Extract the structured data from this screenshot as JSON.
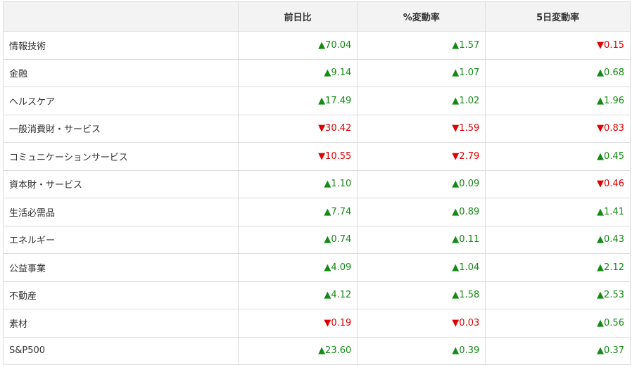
{
  "table": {
    "headers": [
      "",
      "前日比",
      "%変動率",
      "5日変動率"
    ],
    "rows": [
      [
        "情報技術",
        {
          "text": "▲70.04",
          "color": "#138a13"
        },
        {
          "text": "▲1.57",
          "color": "#138a13"
        },
        {
          "text": "▼0.15",
          "color": "#e00000"
        }
      ],
      [
        "金融",
        {
          "text": "▲9.14",
          "color": "#138a13"
        },
        {
          "text": "▲1.07",
          "color": "#138a13"
        },
        {
          "text": "▲0.68",
          "color": "#138a13"
        }
      ],
      [
        "ヘルスケア",
        {
          "text": "▲17.49",
          "color": "#138a13"
        },
        {
          "text": "▲1.02",
          "color": "#138a13"
        },
        {
          "text": "▲1.96",
          "color": "#138a13"
        }
      ],
      [
        "一般消費財・サービス",
        {
          "text": "▼30.42",
          "color": "#e00000"
        },
        {
          "text": "▼1.59",
          "color": "#e00000"
        },
        {
          "text": "▼0.83",
          "color": "#e00000"
        }
      ],
      [
        "コミュニケーションサービス",
        {
          "text": "▼10.55",
          "color": "#e00000"
        },
        {
          "text": "▼2.79",
          "color": "#e00000"
        },
        {
          "text": "▲0.45",
          "color": "#138a13"
        }
      ],
      [
        "資本財・サービス",
        {
          "text": "▲1.10",
          "color": "#138a13"
        },
        {
          "text": "▲0.09",
          "color": "#138a13"
        },
        {
          "text": "▼0.46",
          "color": "#e00000"
        }
      ],
      [
        "生活必需品",
        {
          "text": "▲7.74",
          "color": "#138a13"
        },
        {
          "text": "▲0.89",
          "color": "#138a13"
        },
        {
          "text": "▲1.41",
          "color": "#138a13"
        }
      ],
      [
        "エネルギー",
        {
          "text": "▲0.74",
          "color": "#138a13"
        },
        {
          "text": "▲0.11",
          "color": "#138a13"
        },
        {
          "text": "▲0.43",
          "color": "#138a13"
        }
      ],
      [
        "公益事業",
        {
          "text": "▲4.09",
          "color": "#138a13"
        },
        {
          "text": "▲1.04",
          "color": "#138a13"
        },
        {
          "text": "▲2.12",
          "color": "#138a13"
        }
      ],
      [
        "不動産",
        {
          "text": "▲4.12",
          "color": "#138a13"
        },
        {
          "text": "▲1.58",
          "color": "#138a13"
        },
        {
          "text": "▲2.53",
          "color": "#138a13"
        }
      ],
      [
        "素材",
        {
          "text": "▼0.19",
          "color": "#e00000"
        },
        {
          "text": "▼0.03",
          "color": "#e00000"
        },
        {
          "text": "▲0.56",
          "color": "#138a13"
        }
      ],
      [
        "S&P500",
        {
          "text": "▲23.60",
          "color": "#138a13"
        },
        {
          "text": "▲0.39",
          "color": "#138a13"
        },
        {
          "text": "▲0.37",
          "color": "#138a13"
        }
      ]
    ]
  }
}
